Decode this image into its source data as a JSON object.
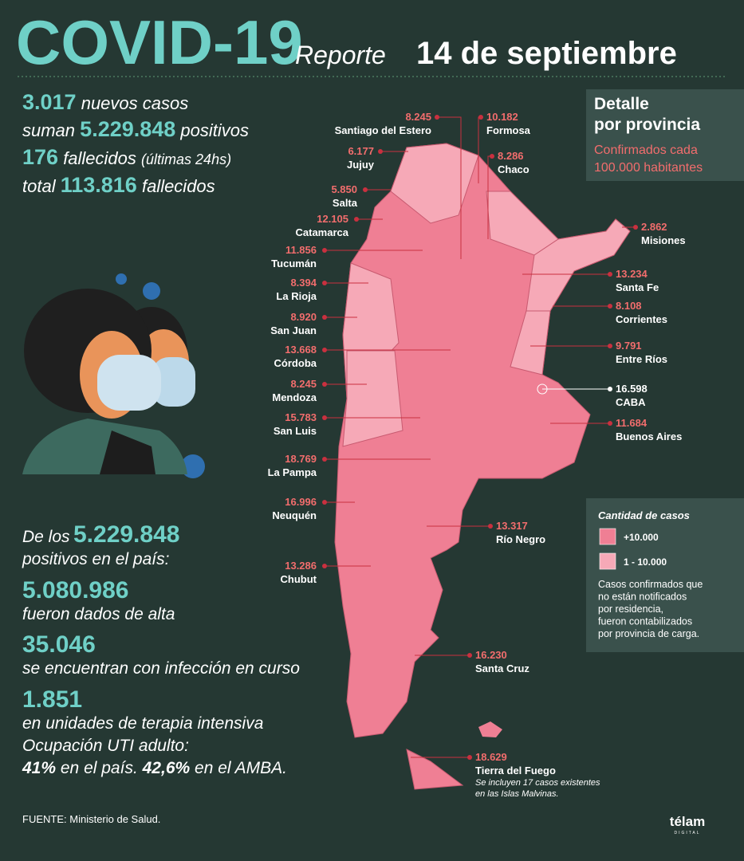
{
  "header": {
    "title": "COVID-19",
    "report": "Reporte",
    "date": "14 de septiembre"
  },
  "summary": {
    "new_cases": "3.017",
    "new_cases_text": "nuevos casos",
    "add": "suman",
    "total_cases": "5.229.848",
    "total_cases_text": "positivos",
    "deaths": "176",
    "deaths_text": "fallecidos",
    "deaths_note": "(últimas 24hs)",
    "total_word": "total",
    "total_deaths": "113.816",
    "total_deaths_text": "fallecidos"
  },
  "detail_box": {
    "title_lines": [
      "Detalle",
      "por provincia"
    ],
    "subtitle_lines": [
      "Confirmados cada",
      "100.000 habitantes"
    ]
  },
  "key": {
    "title": "Cantidad de casos",
    "items": [
      {
        "label": "+10.000",
        "color": "#ef7f94"
      },
      {
        "label": "1 - 10.000",
        "color": "#f6a9b7"
      }
    ],
    "note_lines": [
      "Casos confirmados que",
      "no están notificados",
      "por residencia,",
      "fueron contabilizados",
      "por provincia de carga."
    ]
  },
  "provinces": [
    {
      "name": "Santiago del Estero",
      "value": "8.245"
    },
    {
      "name": "Jujuy",
      "value": "6.177"
    },
    {
      "name": "Salta",
      "value": "5.850"
    },
    {
      "name": "Catamarca",
      "value": "12.105"
    },
    {
      "name": "Tucumán",
      "value": "11.856"
    },
    {
      "name": "La Rioja",
      "value": "8.394"
    },
    {
      "name": "San Juan",
      "value": "8.920"
    },
    {
      "name": "Córdoba",
      "value": "13.668"
    },
    {
      "name": "Mendoza",
      "value": "8.245"
    },
    {
      "name": "San Luis",
      "value": "15.783"
    },
    {
      "name": "La Pampa",
      "value": "18.769"
    },
    {
      "name": "Neuquén",
      "value": "16.996"
    },
    {
      "name": "Chubut",
      "value": "13.286"
    },
    {
      "name": "Formosa",
      "value": "10.182"
    },
    {
      "name": "Chaco",
      "value": "8.286"
    },
    {
      "name": "Misiones",
      "value": "2.862"
    },
    {
      "name": "Santa Fe",
      "value": "13.234"
    },
    {
      "name": "Corrientes",
      "value": "8.108"
    },
    {
      "name": "Entre Ríos",
      "value": "9.791"
    },
    {
      "name": "CABA",
      "value": "16.598"
    },
    {
      "name": "Buenos Aires",
      "value": "11.684"
    },
    {
      "name": "Río Negro",
      "value": "13.317"
    },
    {
      "name": "Santa Cruz",
      "value": "16.230"
    },
    {
      "name": "Tierra del Fuego",
      "value": "18.629"
    }
  ],
  "malvinas_note_lines": [
    "Se incluyen 17 casos existentes",
    "en las Islas Malvinas."
  ],
  "stats": {
    "intro": "De los",
    "intro_number": "5.229.848",
    "intro_text": "positivos en el país:",
    "discharged": "5.080.986",
    "discharged_text": "fueron dados de alta",
    "active": "35.046",
    "active_text": "se encuentran con infección en curso",
    "icu": "1.851",
    "icu_text": "en unidades de terapia intensiva",
    "icu_occupancy": "Ocupación UTI adulto:",
    "country_pct": "41%",
    "country_text": "en el país.",
    "amba_pct": "42,6%",
    "amba_text": "en el AMBA."
  },
  "footer": {
    "source_label": "FUENTE:",
    "source": "Ministerio de Salud.",
    "brand": "télam",
    "brand_sub": "DIGITAL"
  }
}
